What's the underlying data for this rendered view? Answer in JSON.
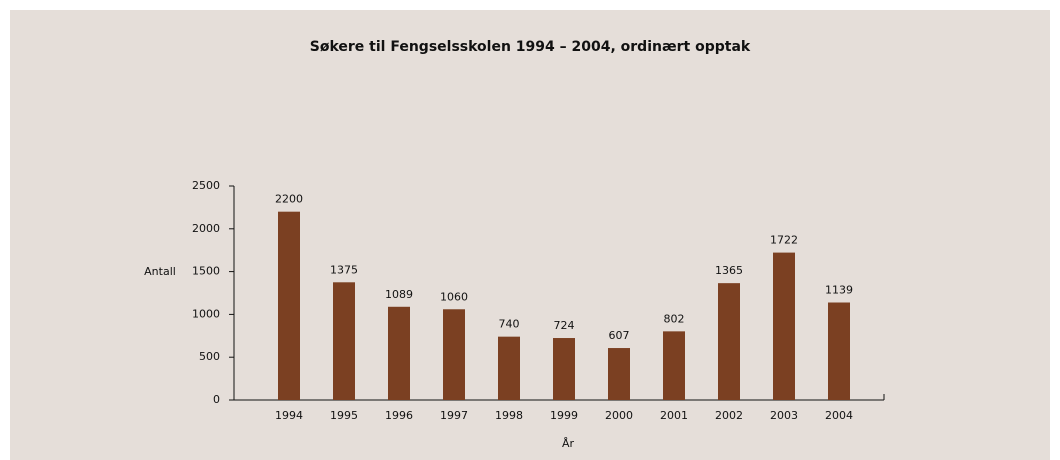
{
  "chart_data": {
    "type": "bar",
    "title": "Søkere til Fengselsskolen 1994 – 2004, ordinært opptak",
    "x_label": "År",
    "y_label": "Antall",
    "categories": [
      "1994",
      "1995",
      "1996",
      "1997",
      "1998",
      "1999",
      "2000",
      "2001",
      "2002",
      "2003",
      "2004"
    ],
    "values": [
      2200,
      1375,
      1089,
      1060,
      740,
      724,
      607,
      802,
      1365,
      1722,
      1139
    ],
    "color": "#7b4022",
    "ylim": [
      0,
      2500
    ],
    "yticks": [
      0,
      500,
      1000,
      1500,
      2000,
      2500
    ],
    "grid": false
  }
}
